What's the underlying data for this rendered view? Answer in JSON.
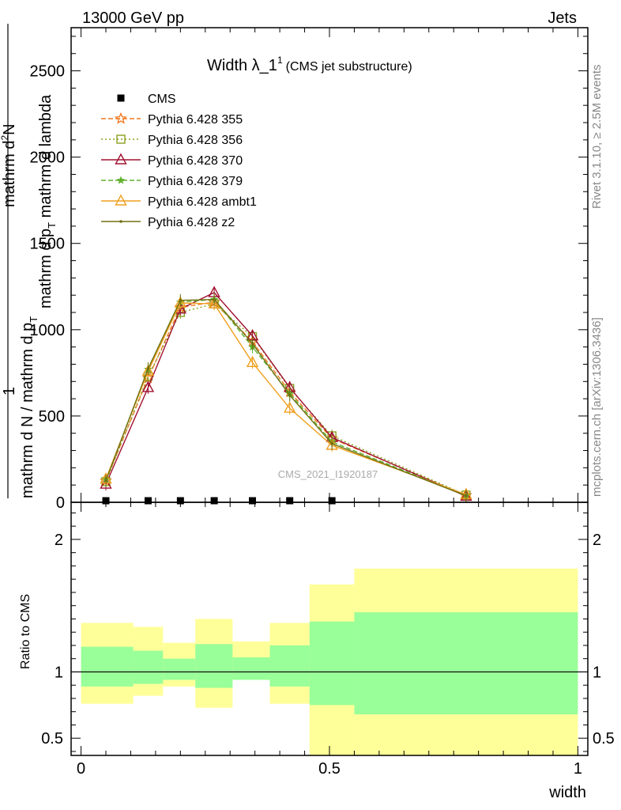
{
  "header": {
    "left": "13000 GeV pp",
    "right": "Jets"
  },
  "title": {
    "main": "Width λ_1",
    "sup": "1",
    "sub": "(CMS jet substructure)"
  },
  "ylabel": {
    "line1": "1",
    "line2_lead": "mathrm d N / mathrm d p",
    "line2_sub": "T",
    "frac_num": "mathrm d",
    "frac_num_sup": "2",
    "frac_num_tail": "N",
    "frac_den_lead": "mathrm d p",
    "frac_den_sub": "T",
    "frac_den_tail": " mathrm d lambda"
  },
  "side_text": {
    "rivet": "Rivet 3.1.10, ≥ 2.5M events",
    "mcplots": "mcplots.cern.ch [arXiv:1306.3436]"
  },
  "watermark": "CMS_2021_I1920187",
  "ratio_ylabel": "Ratio to CMS",
  "xlabel": "width",
  "chart_data": [
    {
      "type": "line",
      "panel": "main",
      "title": "Width λ_1^1 (CMS jet substructure)",
      "xlabel": "width",
      "ylabel": "1 / (mathrm d N / mathrm d p_T) · mathrm d^2 N / (mathrm d p_T mathrm d lambda)",
      "xlim": [
        -0.02,
        1.02
      ],
      "ylim": [
        0,
        2750
      ],
      "ytick_values": [
        0,
        500,
        1000,
        1500,
        2000,
        2500
      ],
      "ytick_labels": [
        "0",
        "500",
        "1000",
        "1500",
        "2000",
        "2500"
      ],
      "legend_position": "top-left",
      "x": [
        0.05,
        0.135,
        0.2,
        0.268,
        0.345,
        0.42,
        0.505,
        0.775
      ],
      "series": [
        {
          "name": "CMS",
          "color": "#000000",
          "marker": "square",
          "dash": "none",
          "values": [
            4,
            4,
            4,
            4,
            4,
            4,
            4,
            null
          ]
        },
        {
          "name": "Pythia 6.428 355",
          "color": "#f07820",
          "marker": "star",
          "dash": "6,3",
          "values": [
            125,
            720,
            1130,
            1160,
            930,
            640,
            370,
            40
          ]
        },
        {
          "name": "Pythia 6.428 356",
          "color": "#8aa020",
          "marker": "square-open",
          "dash": "2,3",
          "values": [
            120,
            730,
            1100,
            1150,
            960,
            660,
            385,
            42
          ]
        },
        {
          "name": "Pythia 6.428 370",
          "color": "#a01030",
          "marker": "triangle-open",
          "dash": "none",
          "values": [
            105,
            665,
            1120,
            1215,
            965,
            665,
            375,
            35
          ]
        },
        {
          "name": "Pythia 6.428 379",
          "color": "#60b030",
          "marker": "star-small",
          "dash": "6,3",
          "values": [
            130,
            770,
            1160,
            1175,
            900,
            630,
            350,
            40
          ]
        },
        {
          "name": "Pythia 6.428 ambt1",
          "color": "#f0a020",
          "marker": "triangle-open",
          "dash": "none",
          "values": [
            135,
            760,
            1155,
            1150,
            810,
            545,
            330,
            45
          ]
        },
        {
          "name": "Pythia 6.428 z2",
          "color": "#707010",
          "marker": "dot",
          "dash": "none",
          "values": [
            125,
            775,
            1170,
            1175,
            920,
            620,
            340,
            38
          ]
        }
      ]
    },
    {
      "type": "area",
      "panel": "ratio",
      "ylabel": "Ratio to CMS",
      "xlabel": "width",
      "ylim": [
        0.37,
        2.28
      ],
      "xlim": [
        -0.02,
        1.02
      ],
      "ytick_values": [
        0.5,
        1,
        2
      ],
      "ytick_labels": [
        "0.5",
        "1",
        "2"
      ],
      "xtick_values": [
        0,
        0.5,
        1
      ],
      "xtick_labels": [
        "0",
        "0.5",
        "1"
      ],
      "reference_line": 1,
      "bin_edges": [
        0,
        0.105,
        0.165,
        0.23,
        0.305,
        0.38,
        0.46,
        0.55,
        1.0
      ],
      "band_outer": {
        "color": "#ffff99",
        "lower": [
          0.76,
          0.82,
          0.89,
          0.73,
          0.94,
          0.76,
          0.37,
          0.37
        ],
        "upper": [
          1.37,
          1.34,
          1.22,
          1.4,
          1.23,
          1.37,
          1.66,
          1.78
        ]
      },
      "band_inner": {
        "color": "#99ff99",
        "lower": [
          0.89,
          0.91,
          0.94,
          0.88,
          0.94,
          0.89,
          0.75,
          0.68
        ],
        "upper": [
          1.19,
          1.16,
          1.1,
          1.21,
          1.11,
          1.2,
          1.38,
          1.45
        ]
      }
    }
  ]
}
